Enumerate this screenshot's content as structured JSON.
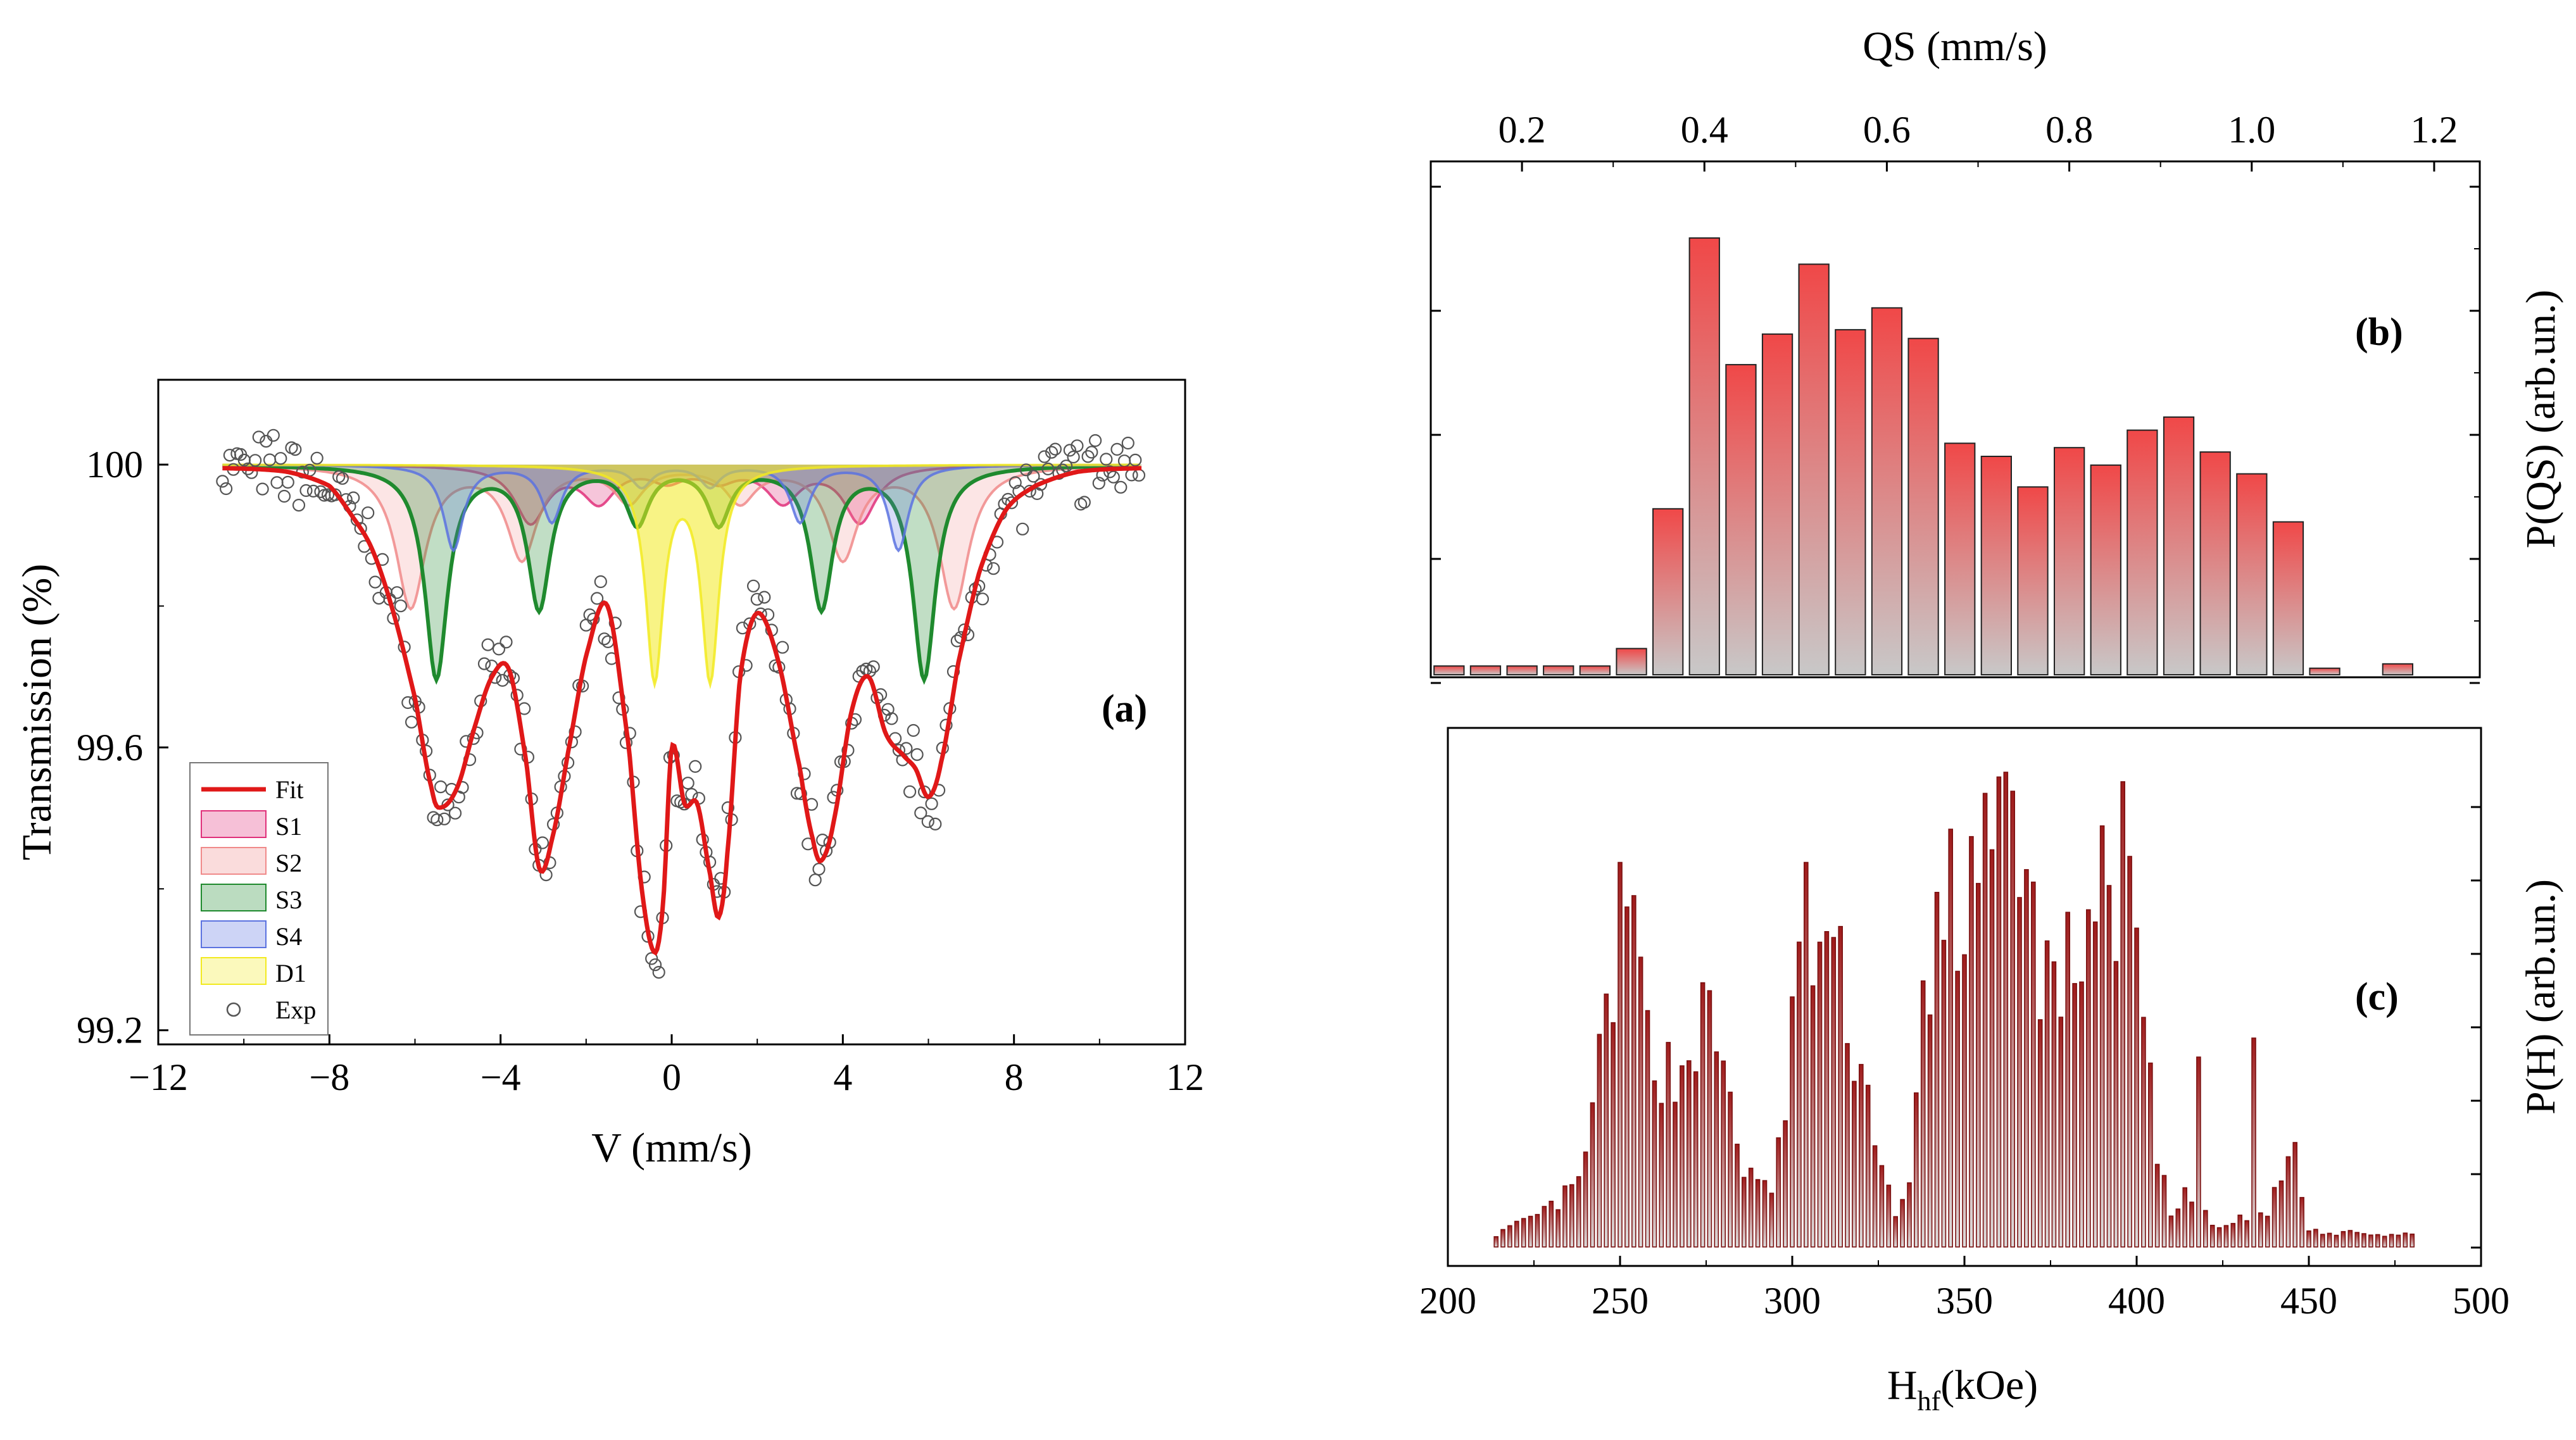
{
  "chart_data": [
    {
      "type": "line",
      "panel_label": "(a)",
      "xlabel": "V (mm/s)",
      "ylabel": "Transmission (%)",
      "xlim": [
        -12,
        12
      ],
      "ylim": [
        99.18,
        100.12
      ],
      "xticks": [
        "−12",
        "−8",
        "−4",
        "0",
        "4",
        "8",
        "12"
      ],
      "yticks": [
        "99.2",
        "99.6",
        "100"
      ],
      "legend_placement": "lower-left",
      "legend": [
        "Fit",
        "S1",
        "S2",
        "S3",
        "S4",
        "D1",
        "Exp"
      ],
      "series": [
        {
          "name": "S1",
          "color": "#e0307a",
          "hyperfine_split_mm_s": [
            -3.3,
            -1.7,
            -0.1,
            1.1,
            2.6,
            4.4
          ],
          "depths_percent": [
            0.08,
            0.05,
            0.02,
            0.02,
            0.05,
            0.08
          ]
        },
        {
          "name": "S2",
          "color": "#f08a8a",
          "hyperfine_split_mm_s": [
            -6.1,
            -3.5,
            -1.0,
            1.6,
            4.0,
            6.6
          ],
          "depths_percent": [
            0.2,
            0.13,
            0.05,
            0.05,
            0.13,
            0.2
          ]
        },
        {
          "name": "S3",
          "color": "#1f8a2e",
          "hyperfine_split_mm_s": [
            -5.5,
            -3.1,
            -0.8,
            1.1,
            3.5,
            5.9
          ],
          "depths_percent": [
            0.3,
            0.2,
            0.08,
            0.08,
            0.2,
            0.3
          ]
        },
        {
          "name": "S4",
          "color": "#5b72e0",
          "hyperfine_split_mm_s": [
            -5.1,
            -2.8,
            -0.7,
            0.9,
            3.0,
            5.3
          ],
          "depths_percent": [
            0.12,
            0.08,
            0.03,
            0.03,
            0.08,
            0.12
          ]
        },
        {
          "name": "D1",
          "color": "#f2ea20",
          "doublet_mm_s": [
            -0.4,
            0.9
          ],
          "depths_percent": [
            0.3,
            0.3
          ]
        },
        {
          "name": "Fit",
          "color": "#e01818",
          "x": [
            -10.5,
            -9,
            -8,
            -7.5,
            -7,
            -6.5,
            -6,
            -5.6,
            -5.4,
            -5,
            -4.6,
            -4.2,
            -3.8,
            -3.4,
            -3.1,
            -2.8,
            -2.4,
            -2,
            -1.5,
            -1,
            -0.7,
            -0.4,
            -0.2,
            0,
            0.3,
            0.6,
            0.9,
            1.1,
            1.3,
            1.6,
            2,
            2.5,
            3,
            3.3,
            3.5,
            3.8,
            4.2,
            4.6,
            5,
            5.4,
            5.7,
            6,
            6.3,
            6.7,
            7.2,
            7.8,
            8.5,
            9.5,
            11
          ],
          "y": [
            99.995,
            99.99,
            99.97,
            99.93,
            99.88,
            99.79,
            99.67,
            99.54,
            99.515,
            99.545,
            99.63,
            99.7,
            99.71,
            99.58,
            99.43,
            99.47,
            99.6,
            99.73,
            99.8,
            99.6,
            99.4,
            99.31,
            99.38,
            99.6,
            99.52,
            99.52,
            99.42,
            99.36,
            99.45,
            99.7,
            99.79,
            99.72,
            99.57,
            99.47,
            99.44,
            99.5,
            99.65,
            99.7,
            99.62,
            99.59,
            99.57,
            99.53,
            99.58,
            99.72,
            99.85,
            99.935,
            99.97,
            99.99,
            99.995
          ]
        },
        {
          "name": "Exp",
          "marker": "open circle",
          "x_range": [
            -10.5,
            11
          ],
          "note_points": "scatter around the Fit curve"
        }
      ]
    },
    {
      "type": "bar",
      "panel_label": "(b)",
      "xlabel": "QS (mm/s)",
      "ylabel": "P(QS) (arb.un.)",
      "x_axis_position": "top",
      "xlim": [
        0.1,
        1.25
      ],
      "xticks": [
        "0.2",
        "0.4",
        "0.6",
        "0.8",
        "1.0",
        "1.2"
      ],
      "bar_color_top": "#f04848",
      "bar_color_bottom": "#c8c8c8",
      "x": [
        0.12,
        0.16,
        0.2,
        0.24,
        0.28,
        0.32,
        0.36,
        0.4,
        0.44,
        0.48,
        0.52,
        0.56,
        0.6,
        0.64,
        0.68,
        0.72,
        0.76,
        0.8,
        0.84,
        0.88,
        0.92,
        0.96,
        1.0,
        1.04,
        1.08,
        1.12,
        1.16
      ],
      "values": [
        0.02,
        0.02,
        0.02,
        0.02,
        0.02,
        0.06,
        0.38,
        1.0,
        0.71,
        0.78,
        0.94,
        0.79,
        0.84,
        0.77,
        0.53,
        0.5,
        0.43,
        0.52,
        0.48,
        0.56,
        0.59,
        0.51,
        0.46,
        0.35,
        0.015,
        0.0,
        0.025
      ]
    },
    {
      "type": "bar",
      "panel_label": "(c)",
      "xlabel": "H",
      "xlabel_sub": "hf",
      "xlabel_unit": "(kOe)",
      "ylabel": "P(H) (arb.un.)",
      "xlim": [
        200,
        500
      ],
      "xticks": [
        "200",
        "250",
        "300",
        "350",
        "400",
        "450",
        "500"
      ],
      "bar_color_top": "#a01a1a",
      "bar_color_bottom": "#dcdcdc",
      "x_range": [
        214,
        480
      ],
      "bin_step": 2,
      "envelope": [
        [
          214,
          0.03
        ],
        [
          224,
          0.06
        ],
        [
          232,
          0.1
        ],
        [
          238,
          0.14
        ],
        [
          242,
          0.3
        ],
        [
          246,
          0.52
        ],
        [
          250,
          0.72
        ],
        [
          254,
          0.6
        ],
        [
          258,
          0.5
        ],
        [
          262,
          0.42
        ],
        [
          266,
          0.38
        ],
        [
          270,
          0.44
        ],
        [
          274,
          0.52
        ],
        [
          278,
          0.46
        ],
        [
          282,
          0.34
        ],
        [
          286,
          0.18
        ],
        [
          290,
          0.13
        ],
        [
          294,
          0.14
        ],
        [
          298,
          0.3
        ],
        [
          302,
          0.7
        ],
        [
          306,
          0.68
        ],
        [
          310,
          0.7
        ],
        [
          314,
          0.6
        ],
        [
          318,
          0.46
        ],
        [
          322,
          0.34
        ],
        [
          326,
          0.2
        ],
        [
          330,
          0.06
        ],
        [
          334,
          0.13
        ],
        [
          338,
          0.55
        ],
        [
          342,
          0.7
        ],
        [
          346,
          0.74
        ],
        [
          350,
          0.72
        ],
        [
          354,
          0.82
        ],
        [
          358,
          0.86
        ],
        [
          362,
          0.94
        ],
        [
          366,
          0.9
        ],
        [
          370,
          0.7
        ],
        [
          374,
          0.62
        ],
        [
          378,
          0.6
        ],
        [
          382,
          0.66
        ],
        [
          386,
          0.74
        ],
        [
          390,
          0.78
        ],
        [
          394,
          0.82
        ],
        [
          398,
          0.86
        ],
        [
          402,
          0.48
        ],
        [
          406,
          0.2
        ],
        [
          410,
          0.07
        ],
        [
          414,
          0.11
        ],
        [
          418,
          0.14
        ],
        [
          422,
          0.04
        ],
        [
          426,
          0.05
        ],
        [
          430,
          0.06
        ],
        [
          434,
          0.06
        ],
        [
          438,
          0.08
        ],
        [
          442,
          0.18
        ],
        [
          446,
          0.16
        ],
        [
          450,
          0.04
        ],
        [
          456,
          0.03
        ],
        [
          462,
          0.04
        ],
        [
          470,
          0.03
        ],
        [
          480,
          0.025
        ]
      ],
      "spikes": [
        [
          250,
          0.81
        ],
        [
          254,
          0.74
        ],
        [
          304,
          0.81
        ],
        [
          346,
          0.88
        ],
        [
          360,
          0.99
        ],
        [
          364,
          0.96
        ],
        [
          396,
          0.98
        ],
        [
          418,
          0.4
        ],
        [
          434,
          0.44
        ],
        [
          446,
          0.22
        ]
      ]
    }
  ]
}
